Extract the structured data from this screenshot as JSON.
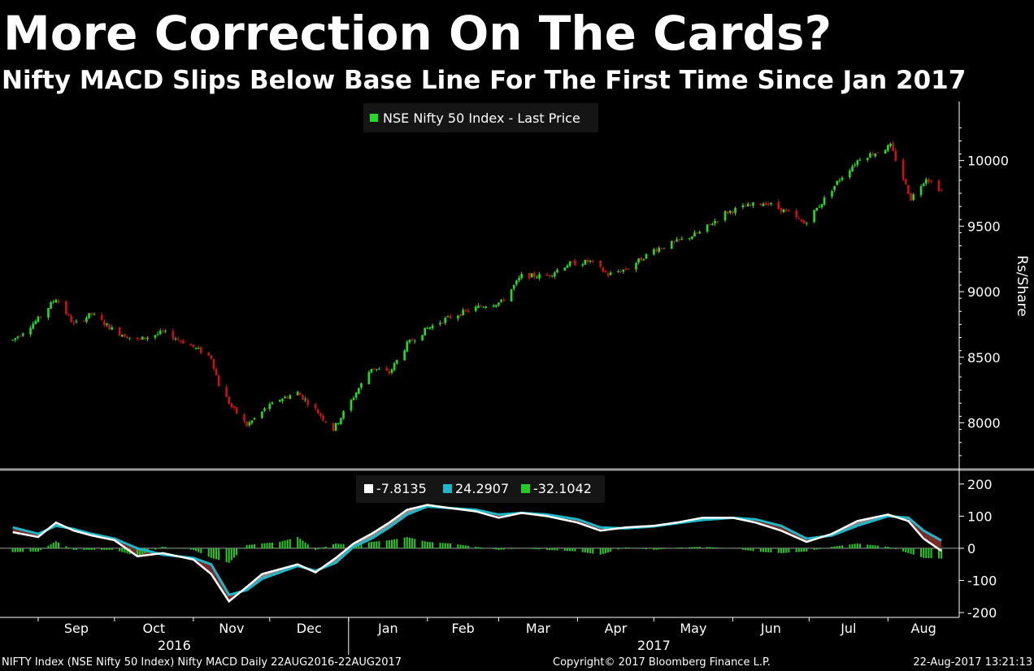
{
  "header": {
    "title": "More Correction On The Cards?",
    "subtitle": "Nifty MACD Slips Below Base Line For The First Time Since Jan 2017"
  },
  "footer": {
    "source": "NIFTY Index (NSE Nifty 50 Index) Nifty MACD  Daily 22AUG2016-22AUG2017",
    "copyright": "Copyright© 2017 Bloomberg Finance L.P.",
    "timestamp": "22-Aug-2017 13:21:13"
  },
  "colors": {
    "background": "#000000",
    "up": "#22dd22",
    "down": "#cc1111",
    "macd_line": "#ffffff",
    "signal_line": "#1ab8c8",
    "histogram": "#22cc22",
    "fill_above": "#8a8a8a",
    "fill_below": "#7a2a2a",
    "axis": "#ffffff",
    "separator": "#9a9a9a"
  },
  "chart_data": [
    {
      "type": "candlestick",
      "legend": {
        "label": "NSE Nifty 50 Index - Last Price",
        "placement": "top-center"
      },
      "ylabel": "Rs/Share",
      "ylim": [
        7650,
        10450
      ],
      "yticks": [
        8000,
        8500,
        9000,
        9500,
        10000
      ],
      "xlabels": [
        "Sep",
        "Oct",
        "Nov",
        "Dec",
        "Jan",
        "Feb",
        "Mar",
        "Apr",
        "May",
        "Jun",
        "Jul",
        "Aug"
      ],
      "year_labels": [
        "2016",
        "2017"
      ],
      "series": [
        {
          "x": [
            "2016-08-22",
            "2016-09-01",
            "2016-09-08",
            "2016-09-15",
            "2016-09-22",
            "2016-10-01",
            "2016-10-10",
            "2016-10-20",
            "2016-10-28",
            "2016-11-08",
            "2016-11-11",
            "2016-11-16",
            "2016-11-22",
            "2016-11-29",
            "2016-12-05",
            "2016-12-12",
            "2016-12-19",
            "2016-12-26",
            "2017-01-03",
            "2017-01-10",
            "2017-01-17",
            "2017-01-24",
            "2017-02-01",
            "2017-02-08",
            "2017-02-16",
            "2017-02-24",
            "2017-03-02",
            "2017-03-10",
            "2017-03-20",
            "2017-03-28",
            "2017-04-06",
            "2017-04-13",
            "2017-04-21",
            "2017-05-01",
            "2017-05-10",
            "2017-05-19",
            "2017-05-29",
            "2017-06-06",
            "2017-06-14",
            "2017-06-22",
            "2017-06-29",
            "2017-07-06",
            "2017-07-13",
            "2017-07-21",
            "2017-07-27",
            "2017-08-02",
            "2017-08-10",
            "2017-08-16",
            "2017-08-22"
          ],
          "y": [
            8630,
            8790,
            8950,
            8750,
            8830,
            8700,
            8630,
            8690,
            8620,
            8500,
            8290,
            8120,
            7980,
            8100,
            8180,
            8230,
            8100,
            7950,
            8200,
            8420,
            8380,
            8600,
            8720,
            8790,
            8850,
            8900,
            8920,
            9120,
            9120,
            9210,
            9230,
            9130,
            9180,
            9320,
            9380,
            9450,
            9600,
            9650,
            9680,
            9610,
            9520,
            9680,
            9860,
            10020,
            10060,
            10110,
            9710,
            9870,
            9770
          ]
        }
      ]
    },
    {
      "type": "line",
      "legend_placement": "top-center",
      "ylim": [
        -215,
        240
      ],
      "yticks": [
        200,
        100,
        0,
        -100,
        -200
      ],
      "xlabels": [
        "Sep",
        "Oct",
        "Nov",
        "Dec",
        "Jan",
        "Feb",
        "Mar",
        "Apr",
        "May",
        "Jun",
        "Jul",
        "Aug"
      ],
      "series": [
        {
          "name": "-7.8135",
          "x": [
            "2016-08-22",
            "2016-09-01",
            "2016-09-08",
            "2016-09-15",
            "2016-09-22",
            "2016-10-01",
            "2016-10-10",
            "2016-10-20",
            "2016-11-01",
            "2016-11-08",
            "2016-11-15",
            "2016-11-22",
            "2016-11-28",
            "2016-12-05",
            "2016-12-12",
            "2016-12-19",
            "2016-12-27",
            "2017-01-03",
            "2017-01-10",
            "2017-01-17",
            "2017-01-24",
            "2017-02-01",
            "2017-02-10",
            "2017-02-20",
            "2017-03-01",
            "2017-03-10",
            "2017-03-20",
            "2017-04-01",
            "2017-04-10",
            "2017-04-20",
            "2017-05-01",
            "2017-05-10",
            "2017-05-20",
            "2017-06-01",
            "2017-06-10",
            "2017-06-20",
            "2017-06-30",
            "2017-07-10",
            "2017-07-20",
            "2017-08-01",
            "2017-08-09",
            "2017-08-15",
            "2017-08-22"
          ],
          "values": [
            50,
            35,
            80,
            55,
            40,
            25,
            -25,
            -15,
            -35,
            -80,
            -165,
            -120,
            -80,
            -65,
            -50,
            -75,
            -30,
            15,
            45,
            80,
            120,
            135,
            125,
            115,
            95,
            110,
            100,
            80,
            55,
            65,
            70,
            80,
            95,
            95,
            80,
            55,
            20,
            45,
            85,
            105,
            85,
            30,
            -8
          ]
        },
        {
          "name": "24.2907",
          "x": [
            "2016-08-22",
            "2016-09-01",
            "2016-09-08",
            "2016-09-15",
            "2016-09-22",
            "2016-10-01",
            "2016-10-10",
            "2016-10-20",
            "2016-11-01",
            "2016-11-08",
            "2016-11-15",
            "2016-11-22",
            "2016-11-28",
            "2016-12-05",
            "2016-12-12",
            "2016-12-19",
            "2016-12-27",
            "2017-01-03",
            "2017-01-10",
            "2017-01-17",
            "2017-01-24",
            "2017-02-01",
            "2017-02-10",
            "2017-02-20",
            "2017-03-01",
            "2017-03-10",
            "2017-03-20",
            "2017-04-01",
            "2017-04-10",
            "2017-04-20",
            "2017-05-01",
            "2017-05-10",
            "2017-05-20",
            "2017-06-01",
            "2017-06-10",
            "2017-06-20",
            "2017-06-30",
            "2017-07-10",
            "2017-07-20",
            "2017-08-01",
            "2017-08-09",
            "2017-08-15",
            "2017-08-22"
          ],
          "values": [
            65,
            45,
            70,
            60,
            45,
            30,
            0,
            -20,
            -30,
            -50,
            -145,
            -130,
            -95,
            -75,
            -55,
            -70,
            -45,
            5,
            30,
            65,
            105,
            130,
            125,
            120,
            105,
            110,
            105,
            90,
            65,
            62,
            68,
            78,
            88,
            95,
            90,
            70,
            30,
            40,
            70,
            100,
            95,
            55,
            24
          ]
        },
        {
          "name": "-32.1042",
          "type": "bar",
          "x": [
            "2016-08-22",
            "2016-09-01",
            "2016-09-08",
            "2016-09-15",
            "2016-09-22",
            "2016-10-01",
            "2016-10-10",
            "2016-10-20",
            "2016-11-01",
            "2016-11-08",
            "2016-11-15",
            "2016-11-22",
            "2016-11-28",
            "2016-12-05",
            "2016-12-12",
            "2016-12-19",
            "2016-12-27",
            "2017-01-03",
            "2017-01-10",
            "2017-01-17",
            "2017-01-24",
            "2017-02-01",
            "2017-02-10",
            "2017-02-20",
            "2017-03-01",
            "2017-03-10",
            "2017-03-20",
            "2017-04-01",
            "2017-04-10",
            "2017-04-20",
            "2017-05-01",
            "2017-05-10",
            "2017-05-20",
            "2017-06-01",
            "2017-06-10",
            "2017-06-20",
            "2017-06-30",
            "2017-07-10",
            "2017-07-20",
            "2017-08-01",
            "2017-08-09",
            "2017-08-15",
            "2017-08-22"
          ],
          "values": [
            -12,
            -10,
            22,
            -5,
            -5,
            -5,
            -25,
            5,
            -5,
            -30,
            -45,
            10,
            15,
            20,
            35,
            -5,
            15,
            10,
            20,
            25,
            35,
            20,
            15,
            5,
            -5,
            0,
            -5,
            -10,
            -20,
            3,
            -5,
            2,
            5,
            0,
            -10,
            -15,
            -10,
            5,
            15,
            5,
            -15,
            -30,
            -32
          ]
        }
      ]
    }
  ]
}
